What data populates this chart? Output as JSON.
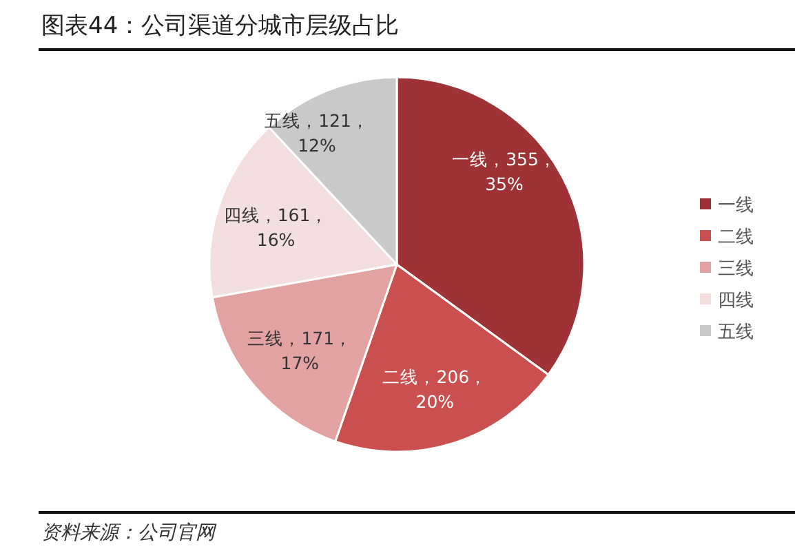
{
  "chart_data": {
    "type": "pie",
    "title": "图表44：公司渠道分城市层级占比",
    "categories": [
      "一线",
      "二线",
      "三线",
      "四线",
      "五线"
    ],
    "values": [
      355,
      206,
      171,
      161,
      121
    ],
    "value_labels": [
      "一线，355，35%",
      "二线，206，20%",
      "三线，171，17%",
      "四线，161，16%",
      "五线，121，12%"
    ],
    "colors": [
      "#9e3234",
      "#c9504f",
      "#e2a2a2",
      "#f3dfdf",
      "#c9c9c9"
    ],
    "legend": "right",
    "annotations": [
      "资料来源：公司官网"
    ]
  }
}
